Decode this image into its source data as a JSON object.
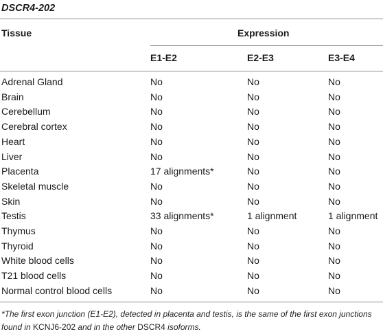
{
  "table_title": "DSCR4-202",
  "headers": {
    "tissue": "Tissue",
    "expression": "Expression",
    "columns": [
      "E1-E2",
      "E2-E3",
      "E3-E4"
    ]
  },
  "rows": [
    {
      "tissue": "Adrenal Gland",
      "values": [
        "No",
        "No",
        "No"
      ]
    },
    {
      "tissue": "Brain",
      "values": [
        "No",
        "No",
        "No"
      ]
    },
    {
      "tissue": "Cerebellum",
      "values": [
        "No",
        "No",
        "No"
      ]
    },
    {
      "tissue": "Cerebral cortex",
      "values": [
        "No",
        "No",
        "No"
      ]
    },
    {
      "tissue": "Heart",
      "values": [
        "No",
        "No",
        "No"
      ]
    },
    {
      "tissue": "Liver",
      "values": [
        "No",
        "No",
        "No"
      ]
    },
    {
      "tissue": "Placenta",
      "values": [
        "17 alignments*",
        "No",
        "No"
      ]
    },
    {
      "tissue": "Skeletal muscle",
      "values": [
        "No",
        "No",
        "No"
      ]
    },
    {
      "tissue": "Skin",
      "values": [
        "No",
        "No",
        "No"
      ]
    },
    {
      "tissue": "Testis",
      "values": [
        "33 alignments*",
        "1 alignment",
        "1 alignment"
      ]
    },
    {
      "tissue": "Thymus",
      "values": [
        "No",
        "No",
        "No"
      ]
    },
    {
      "tissue": "Thyroid",
      "values": [
        "No",
        "No",
        "No"
      ]
    },
    {
      "tissue": "White blood cells",
      "values": [
        "No",
        "No",
        "No"
      ]
    },
    {
      "tissue": "T21 blood cells",
      "values": [
        "No",
        "No",
        "No"
      ]
    },
    {
      "tissue": "Normal control blood cells",
      "values": [
        "No",
        "No",
        "No"
      ]
    }
  ],
  "footnote": {
    "part1": "*The first exon junction (E1-E2), detected in placenta and testis, is the same of the first exon junctions found in ",
    "gene1": "KCNJ6-202",
    "part2": " and in the other ",
    "gene2": "DSCR4",
    "part3": " isoforms."
  }
}
